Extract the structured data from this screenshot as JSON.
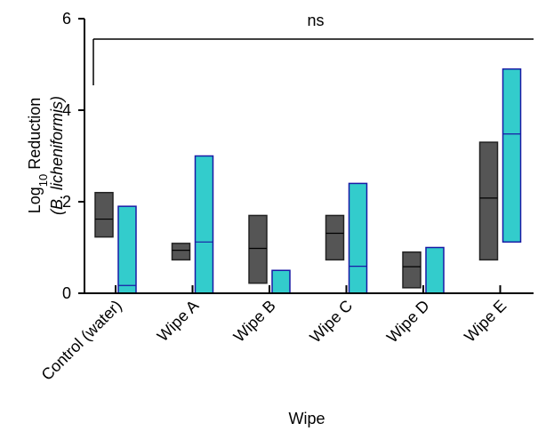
{
  "chart_data": {
    "type": "floating-bar",
    "xlabel": "Wipe",
    "ylabel_line1_prefix": "Log",
    "ylabel_line1_sub": "10",
    "ylabel_line1_suffix": " Reduction",
    "ylabel_line2": "(B. licheniformis)",
    "ylim": [
      0,
      6
    ],
    "yticks": [
      "0",
      "2",
      "4",
      "6"
    ],
    "annotation": "ns",
    "categories": [
      "Control (water)",
      "Wipe A",
      "Wipe B",
      "Wipe C",
      "Wipe D",
      "Wipe E"
    ],
    "series": [
      {
        "color": "#555555",
        "stroke": "#222222",
        "median_color": "#000000",
        "values": [
          {
            "low": 1.23,
            "high": 2.2,
            "median": 1.62
          },
          {
            "low": 0.73,
            "high": 1.09,
            "median": 0.94
          },
          {
            "low": 0.22,
            "high": 1.7,
            "median": 0.98
          },
          {
            "low": 0.73,
            "high": 1.7,
            "median": 1.31
          },
          {
            "low": 0.12,
            "high": 0.9,
            "median": 0.58
          },
          {
            "low": 0.73,
            "high": 3.3,
            "median": 2.08
          }
        ]
      },
      {
        "color": "#33cccc",
        "stroke": "#1a1aa6",
        "median_color": "#1a1aa6",
        "values": [
          {
            "low": 0.0,
            "high": 1.9,
            "median": 0.17
          },
          {
            "low": 0.0,
            "high": 3.0,
            "median": 1.12
          },
          {
            "low": 0.0,
            "high": 0.5,
            "median": null
          },
          {
            "low": 0.0,
            "high": 2.4,
            "median": 0.59
          },
          {
            "low": 0.0,
            "high": 1.0,
            "median": null
          },
          {
            "low": 1.12,
            "high": 4.9,
            "median": 3.48
          }
        ]
      }
    ]
  }
}
